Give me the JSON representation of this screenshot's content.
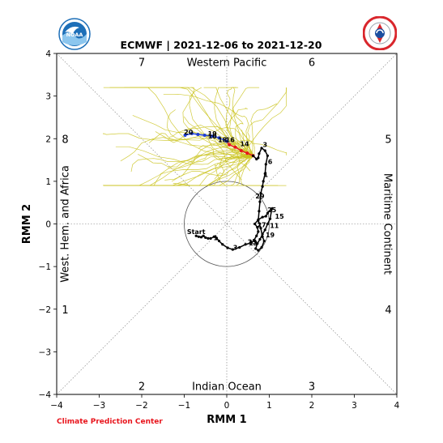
{
  "header": {
    "title": "ECMWF | 2021-12-06 to 2021-12-20"
  },
  "logos": {
    "left": {
      "text": "NOAA",
      "color": "#1d6fb8"
    },
    "right": {
      "text": "NATIONAL WEATHER SERVICE",
      "color": "#d9262c"
    }
  },
  "footer": {
    "credit": "Climate Prediction Center",
    "credit_color": "#e8141c"
  },
  "chart_data": {
    "type": "scatter",
    "xlabel": "RMM 1",
    "ylabel": "RMM 2",
    "xlim": [
      -4,
      4
    ],
    "ylim": [
      -4,
      4
    ],
    "xticks": [
      "−4",
      "−3",
      "−2",
      "−1",
      "0",
      "1",
      "2",
      "3",
      "4"
    ],
    "yticks": [
      "−4",
      "−3",
      "−2",
      "−1",
      "0",
      "1",
      "2",
      "3",
      "4"
    ],
    "phase_numbers": [
      {
        "label": "7",
        "x": -2.0,
        "y": 3.8
      },
      {
        "label": "6",
        "x": 2.0,
        "y": 3.8
      },
      {
        "label": "5",
        "x": 3.8,
        "y": 2.0
      },
      {
        "label": "4",
        "x": 3.8,
        "y": -2.0
      },
      {
        "label": "3",
        "x": 2.0,
        "y": -3.8
      },
      {
        "label": "2",
        "x": -2.0,
        "y": -3.8
      },
      {
        "label": "1",
        "x": -3.8,
        "y": -2.0
      },
      {
        "label": "8",
        "x": -3.8,
        "y": 2.0
      }
    ],
    "region_labels": {
      "top": "Western Pacific",
      "bottom": "Indian Ocean",
      "left": "West. Hem. and Africa",
      "right": "Maritime Continent"
    },
    "unit_circle_radius": 1,
    "observed": {
      "color": "#000000",
      "points": [
        [
          -0.72,
          -0.28
        ],
        [
          -0.66,
          -0.3
        ],
        [
          -0.6,
          -0.31
        ],
        [
          -0.55,
          -0.28
        ],
        [
          -0.5,
          -0.32
        ],
        [
          -0.44,
          -0.34
        ],
        [
          -0.38,
          -0.34
        ],
        [
          -0.3,
          -0.3
        ],
        [
          -0.24,
          -0.33
        ],
        [
          -0.18,
          -0.4
        ],
        [
          -0.1,
          -0.48
        ],
        [
          0.02,
          -0.56
        ],
        [
          0.14,
          -0.6
        ],
        [
          0.3,
          -0.55
        ],
        [
          0.44,
          -0.48
        ],
        [
          0.58,
          -0.44
        ],
        [
          0.64,
          -0.38
        ],
        [
          0.7,
          -0.28
        ],
        [
          0.74,
          -0.18
        ],
        [
          0.72,
          -0.08
        ],
        [
          0.66,
          0.0
        ],
        [
          0.74,
          0.1
        ],
        [
          0.84,
          0.16
        ],
        [
          0.92,
          0.18
        ],
        [
          0.96,
          0.25
        ],
        [
          1.06,
          0.36
        ],
        [
          1.02,
          0.12
        ],
        [
          0.96,
          0.0
        ],
        [
          0.9,
          -0.14
        ],
        [
          0.84,
          -0.24
        ],
        [
          0.78,
          -0.36
        ],
        [
          0.72,
          -0.46
        ],
        [
          0.68,
          -0.58
        ],
        [
          0.74,
          -0.62
        ],
        [
          0.82,
          -0.55
        ],
        [
          0.88,
          -0.4
        ],
        [
          0.84,
          -0.3
        ],
        [
          0.8,
          -0.1
        ],
        [
          0.74,
          0.08
        ],
        [
          0.76,
          0.3
        ],
        [
          0.78,
          0.52
        ],
        [
          0.8,
          0.72
        ],
        [
          0.84,
          0.88
        ],
        [
          0.86,
          1.0
        ],
        [
          0.9,
          1.18
        ],
        [
          0.92,
          1.4
        ],
        [
          0.96,
          1.6
        ],
        [
          0.9,
          1.72
        ],
        [
          0.82,
          1.78
        ],
        [
          0.76,
          1.65
        ],
        [
          0.74,
          1.55
        ],
        [
          0.7,
          1.52
        ],
        [
          0.62,
          1.6
        ]
      ]
    },
    "observed_labels": [
      {
        "label": "Start",
        "x": -0.72,
        "y": -0.18
      },
      {
        "label": "1",
        "x": -0.26,
        "y": -0.32
      },
      {
        "label": "3",
        "x": 0.2,
        "y": -0.55
      },
      {
        "label": "13",
        "x": 0.62,
        "y": -0.45
      },
      {
        "label": "15",
        "x": 1.24,
        "y": 0.18
      },
      {
        "label": "11",
        "x": 1.12,
        "y": -0.04
      },
      {
        "label": "19",
        "x": 1.02,
        "y": -0.26
      },
      {
        "label": "23",
        "x": 0.6,
        "y": -0.42
      },
      {
        "label": "27",
        "x": 0.82,
        "y": -0.02
      },
      {
        "label": "25",
        "x": 1.06,
        "y": 0.33
      },
      {
        "label": "29",
        "x": 0.78,
        "y": 0.66
      },
      {
        "label": "1",
        "x": 0.92,
        "y": 1.16
      },
      {
        "label": "3",
        "x": 0.9,
        "y": 1.86
      }
    ],
    "ensemble_mean": {
      "segments": [
        {
          "color": "#e8141c",
          "points": [
            [
              0.62,
              1.6
            ],
            [
              0.48,
              1.66
            ],
            [
              0.34,
              1.72
            ],
            [
              0.2,
              1.8
            ],
            [
              0.06,
              1.86
            ],
            [
              0.0,
              1.94
            ]
          ]
        },
        {
          "color": "#1f3fd6",
          "points": [
            [
              0.0,
              1.94
            ],
            [
              -0.18,
              2.02
            ],
            [
              -0.34,
              2.06
            ],
            [
              -0.52,
              2.08
            ],
            [
              -0.68,
              2.1
            ],
            [
              -0.82,
              2.12
            ],
            [
              -0.98,
              2.08
            ]
          ]
        }
      ],
      "labels": [
        {
          "label": "6",
          "x": 1.02,
          "y": 1.46
        },
        {
          "label": "14",
          "x": 0.42,
          "y": 1.88
        },
        {
          "label": "16",
          "x": 0.08,
          "y": 1.98
        },
        {
          "label": "18",
          "x": -0.1,
          "y": 1.98
        },
        {
          "label": "10",
          "x": -0.34,
          "y": 2.06
        },
        {
          "label": "19",
          "x": -0.34,
          "y": 2.12
        },
        {
          "label": "20",
          "x": -0.9,
          "y": 2.16
        }
      ]
    },
    "ensemble": {
      "color": "#c9c21a",
      "members": 51,
      "origin": [
        0.62,
        1.6
      ]
    }
  }
}
